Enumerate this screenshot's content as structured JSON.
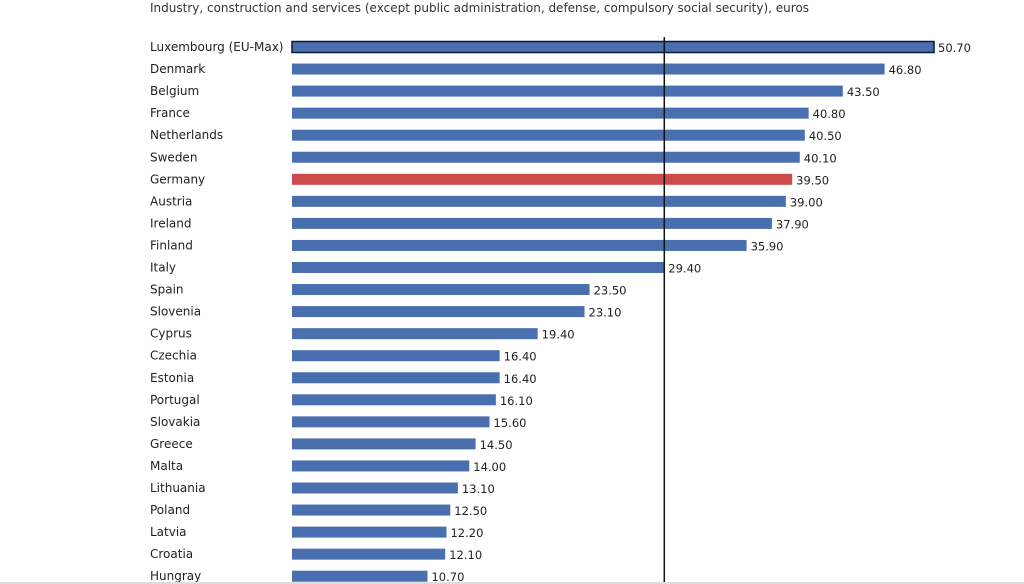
{
  "chart_data": {
    "type": "bar",
    "orientation": "horizontal",
    "subtitle": "Industry, construction and services (except public administration, defense, compulsory social security), euros",
    "categories": [
      "Luxembourg (EU-Max)",
      "Denmark",
      "Belgium",
      "France",
      "Netherlands",
      "Sweden",
      "Germany",
      "Austria",
      "Ireland",
      "Finland",
      "Italy",
      "Spain",
      "Slovenia",
      "Cyprus",
      "Czechia",
      "Estonia",
      "Portugal",
      "Slovakia",
      "Greece",
      "Malta",
      "Lithuania",
      "Poland",
      "Latvia",
      "Croatia",
      "Hungray"
    ],
    "values": [
      50.7,
      46.8,
      43.5,
      40.8,
      40.5,
      40.1,
      39.5,
      39.0,
      37.9,
      35.9,
      29.4,
      23.5,
      23.1,
      19.4,
      16.4,
      16.4,
      16.1,
      15.6,
      14.5,
      14.0,
      13.1,
      12.5,
      12.2,
      12.1,
      10.7
    ],
    "value_labels": [
      "50.70",
      "46.80",
      "43.50",
      "40.80",
      "40.50",
      "40.10",
      "39.50",
      "39.00",
      "37.90",
      "35.90",
      "29.40",
      "23.50",
      "23.10",
      "19.40",
      "16.40",
      "16.40",
      "16.10",
      "15.60",
      "14.50",
      "14.00",
      "13.10",
      "12.50",
      "12.20",
      "12.10",
      "10.70"
    ],
    "highlight": "Germany",
    "reference_line_value": 29.4,
    "xlim": [
      0,
      50.7
    ],
    "grid": false,
    "colors": {
      "bar": "#4a6fae",
      "highlight": "#cc4c4c",
      "reference_line": "#111111",
      "max_outline": "#0d1a33"
    }
  }
}
